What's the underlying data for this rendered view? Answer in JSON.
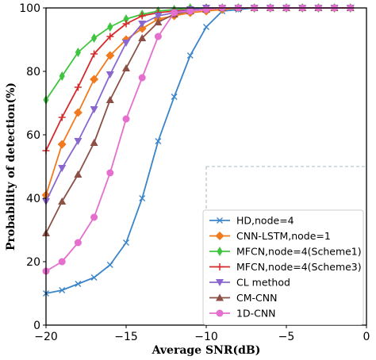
{
  "chart_data": {
    "type": "line",
    "xlabel": "Average SNR(dB)",
    "ylabel": "Probability of detection(%)",
    "xlim": [
      -20,
      0
    ],
    "ylim": [
      0,
      100
    ],
    "xticks": [
      -20,
      -15,
      -10,
      -5,
      0
    ],
    "xtick_labels": [
      "−20",
      "−15",
      "−10",
      "−5",
      "0"
    ],
    "yticks": [
      0,
      20,
      40,
      60,
      80,
      100
    ],
    "ytick_labels": [
      "0",
      "20",
      "40",
      "60",
      "80",
      "100"
    ],
    "grid": false,
    "reference_lines": {
      "x": -10,
      "y": 50,
      "style": "dashed"
    },
    "legend_position": "bottom-right",
    "x": [
      -20,
      -19,
      -18,
      -17,
      -16,
      -15,
      -14,
      -13,
      -12,
      -11,
      -10,
      -9,
      -8,
      -7,
      -6,
      -5,
      -4,
      -3,
      -2,
      -1
    ],
    "series": [
      {
        "name": "HD,node=4",
        "color": "#3a84c9",
        "marker": "x",
        "values": [
          10,
          11,
          13,
          15,
          19,
          26,
          40,
          58,
          72,
          85,
          94,
          99,
          99.5,
          100,
          100,
          100,
          100,
          100,
          100,
          100
        ]
      },
      {
        "name": "CNN-LSTM,node=1",
        "color": "#f07a1e",
        "marker": "diamond",
        "values": [
          41,
          57,
          67,
          77.5,
          85,
          90,
          93.5,
          96.5,
          97.5,
          98.5,
          99,
          99.5,
          100,
          100,
          100,
          100,
          100,
          100,
          100,
          100
        ]
      },
      {
        "name": "MFCN,node=4(Scheme1)",
        "color": "#3fc43f",
        "marker": "thin_diamond",
        "values": [
          71,
          78.5,
          86,
          90.5,
          94,
          96.5,
          98,
          99,
          99.5,
          100,
          100,
          100,
          100,
          100,
          100,
          100,
          100,
          100,
          100,
          100
        ]
      },
      {
        "name": "MFCN,node=4(Scheme3)",
        "color": "#d42a2a",
        "marker": "plus",
        "values": [
          55,
          65.5,
          75,
          85.5,
          91,
          95,
          97.5,
          98.5,
          99,
          99.5,
          100,
          100,
          100,
          100,
          100,
          100,
          100,
          100,
          100,
          100
        ]
      },
      {
        "name": "CL method",
        "color": "#8a67cf",
        "marker": "triangle_down",
        "values": [
          39,
          49.5,
          58,
          68,
          79,
          89,
          95,
          97.5,
          98.5,
          99.5,
          100,
          100,
          100,
          100,
          100,
          100,
          100,
          100,
          100,
          100
        ]
      },
      {
        "name": "CM-CNN",
        "color": "#8c5046",
        "marker": "triangle_up",
        "values": [
          29,
          39,
          47.5,
          57.5,
          71,
          81,
          90.5,
          95.5,
          98,
          99,
          99.5,
          100,
          100,
          100,
          100,
          100,
          100,
          100,
          100,
          100
        ]
      },
      {
        "name": "1D-CNN",
        "color": "#e46fcf",
        "marker": "circle",
        "values": [
          17,
          20,
          26,
          34,
          48,
          65,
          78,
          91,
          98.5,
          99,
          99.5,
          100,
          100,
          100,
          100,
          100,
          100,
          100,
          100,
          100
        ]
      }
    ]
  }
}
